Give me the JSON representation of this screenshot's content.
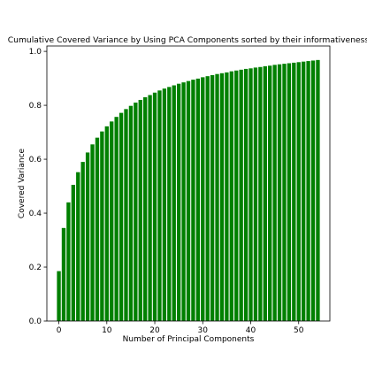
{
  "chart_data": {
    "type": "bar",
    "title": "Cumulative Covered Variance by Using PCA Components sorted by their informativeness",
    "xlabel": "Number of Principal Components",
    "ylabel": "Covered Variance",
    "bar_color": "#008000",
    "xlim": [
      -2.5,
      56.5
    ],
    "ylim": [
      0.0,
      1.02
    ],
    "xticks": [
      0,
      10,
      20,
      30,
      40,
      50
    ],
    "yticks": [
      0.0,
      0.2,
      0.4,
      0.6,
      0.8,
      1.0
    ],
    "xtick_labels": [
      "0",
      "10",
      "20",
      "30",
      "40",
      "50"
    ],
    "ytick_labels": [
      "0.0",
      "0.2",
      "0.4",
      "0.6",
      "0.8",
      "1.0"
    ],
    "grid": false,
    "x": [
      0,
      1,
      2,
      3,
      4,
      5,
      6,
      7,
      8,
      9,
      10,
      11,
      12,
      13,
      14,
      15,
      16,
      17,
      18,
      19,
      20,
      21,
      22,
      23,
      24,
      25,
      26,
      27,
      28,
      29,
      30,
      31,
      32,
      33,
      34,
      35,
      36,
      37,
      38,
      39,
      40,
      41,
      42,
      43,
      44,
      45,
      46,
      47,
      48,
      49,
      50,
      51,
      52,
      53,
      54
    ],
    "values": [
      0.185,
      0.345,
      0.44,
      0.505,
      0.552,
      0.59,
      0.625,
      0.655,
      0.68,
      0.703,
      0.722,
      0.74,
      0.757,
      0.772,
      0.786,
      0.798,
      0.81,
      0.82,
      0.83,
      0.838,
      0.847,
      0.855,
      0.862,
      0.868,
      0.874,
      0.88,
      0.885,
      0.89,
      0.895,
      0.899,
      0.904,
      0.908,
      0.912,
      0.916,
      0.919,
      0.922,
      0.926,
      0.929,
      0.932,
      0.935,
      0.937,
      0.94,
      0.942,
      0.945,
      0.947,
      0.95,
      0.952,
      0.954,
      0.956,
      0.958,
      0.96,
      0.962,
      0.964,
      0.966,
      0.968
    ]
  }
}
